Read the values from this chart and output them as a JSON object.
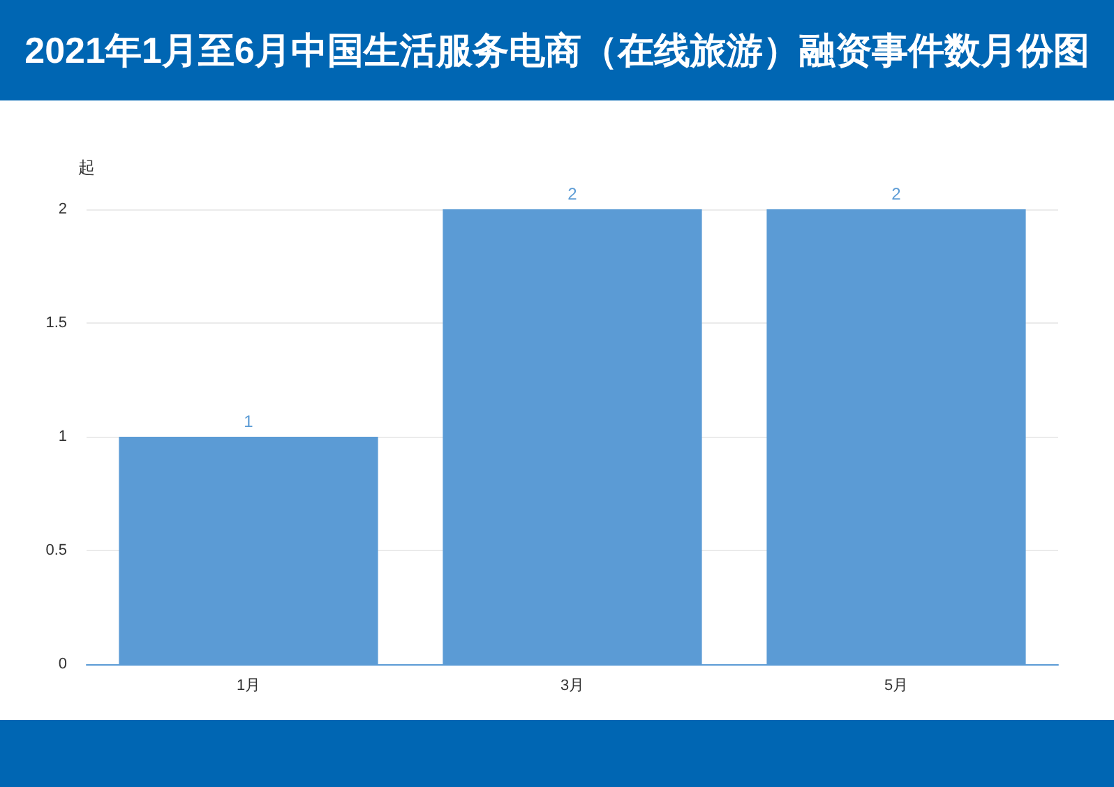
{
  "chart_data": {
    "type": "bar",
    "title": "2021年1月至6月中国生活服务电商（在线旅游）融资事件数月份图",
    "ylabel": "起",
    "categories": [
      "1月",
      "3月",
      "5月"
    ],
    "values": [
      1,
      2,
      2
    ],
    "color": "#5b9bd5",
    "ylim": [
      0,
      2
    ],
    "yticks": [
      0,
      0.5,
      1,
      1.5,
      2
    ],
    "grid": "y",
    "data_labels": true
  }
}
